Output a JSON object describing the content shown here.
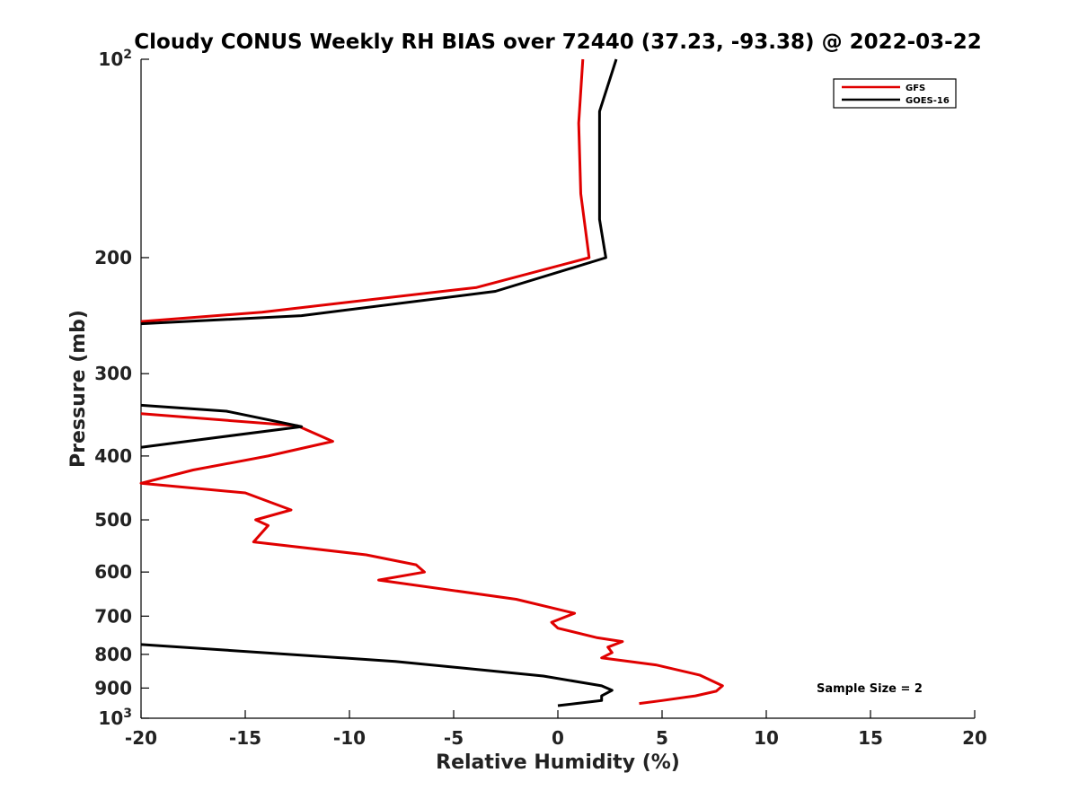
{
  "chart_data": {
    "type": "line",
    "title": "Cloudy CONUS Weekly RH BIAS over 72440 (37.23, -93.38) @ 2022-03-22",
    "xlabel": "Relative Humidity (%)",
    "ylabel": "Pressure (mb)",
    "xlim": [
      -20,
      20
    ],
    "ylim": [
      100,
      1000
    ],
    "y_scale": "log",
    "y_reversed": true,
    "x_ticks": [
      "-20",
      "-15",
      "-10",
      "-5",
      "0",
      "5",
      "10",
      "15",
      "20"
    ],
    "y_ticks": [
      {
        "value": 100,
        "label": "10",
        "sup": "2"
      },
      {
        "value": 200,
        "label": "200",
        "sup": ""
      },
      {
        "value": 300,
        "label": "300",
        "sup": ""
      },
      {
        "value": 400,
        "label": "400",
        "sup": ""
      },
      {
        "value": 500,
        "label": "500",
        "sup": ""
      },
      {
        "value": 600,
        "label": "600",
        "sup": ""
      },
      {
        "value": 700,
        "label": "700",
        "sup": ""
      },
      {
        "value": 800,
        "label": "800",
        "sup": ""
      },
      {
        "value": 900,
        "label": "900",
        "sup": ""
      },
      {
        "value": 1000,
        "label": "10",
        "sup": "3"
      }
    ],
    "legend_position": "top-right",
    "annotation": "Sample Size = 2",
    "series": [
      {
        "name": "GFS",
        "color": "#e00000",
        "points": [
          [
            1.2,
            100
          ],
          [
            1.0,
            125
          ],
          [
            1.1,
            160
          ],
          [
            1.5,
            200
          ],
          [
            -3.9,
            222
          ],
          [
            -14.2,
            242
          ],
          [
            -20.0,
            250
          ],
          [
            null,
            300
          ],
          [
            -20.0,
            345
          ],
          [
            -12.5,
            360
          ],
          [
            -10.8,
            380
          ],
          [
            -13.9,
            400
          ],
          [
            -17.5,
            420
          ],
          [
            -20.0,
            440
          ],
          [
            -15.0,
            455
          ],
          [
            -12.8,
            483
          ],
          [
            -14.5,
            500
          ],
          [
            -13.9,
            510
          ],
          [
            -14.6,
            540
          ],
          [
            -9.2,
            565
          ],
          [
            -6.8,
            585
          ],
          [
            -6.4,
            600
          ],
          [
            -8.6,
            617
          ],
          [
            -2.0,
            660
          ],
          [
            0.8,
            693
          ],
          [
            -0.3,
            715
          ],
          [
            0.0,
            730
          ],
          [
            1.9,
            755
          ],
          [
            3.1,
            765
          ],
          [
            2.4,
            780
          ],
          [
            2.6,
            795
          ],
          [
            2.1,
            810
          ],
          [
            4.7,
            830
          ],
          [
            6.8,
            860
          ],
          [
            7.9,
            893
          ],
          [
            7.6,
            910
          ],
          [
            6.6,
            925
          ],
          [
            5.0,
            940
          ],
          [
            3.9,
            950
          ]
        ]
      },
      {
        "name": "GOES-16",
        "color": "#000000",
        "points": [
          [
            2.8,
            100
          ],
          [
            2.0,
            120
          ],
          [
            2.0,
            175
          ],
          [
            2.3,
            200
          ],
          [
            -3.0,
            225
          ],
          [
            -12.3,
            245
          ],
          [
            -20.0,
            252
          ],
          [
            null,
            300
          ],
          [
            -20.0,
            335
          ],
          [
            -15.9,
            342
          ],
          [
            -12.3,
            361
          ],
          [
            -17.8,
            380
          ],
          [
            -20.0,
            388
          ],
          [
            null,
            500
          ],
          [
            -20.0,
            773
          ],
          [
            -7.8,
            820
          ],
          [
            -0.7,
            863
          ],
          [
            2.1,
            893
          ],
          [
            2.6,
            907
          ],
          [
            2.1,
            925
          ],
          [
            2.1,
            940
          ],
          [
            0.0,
            957
          ]
        ]
      }
    ]
  }
}
